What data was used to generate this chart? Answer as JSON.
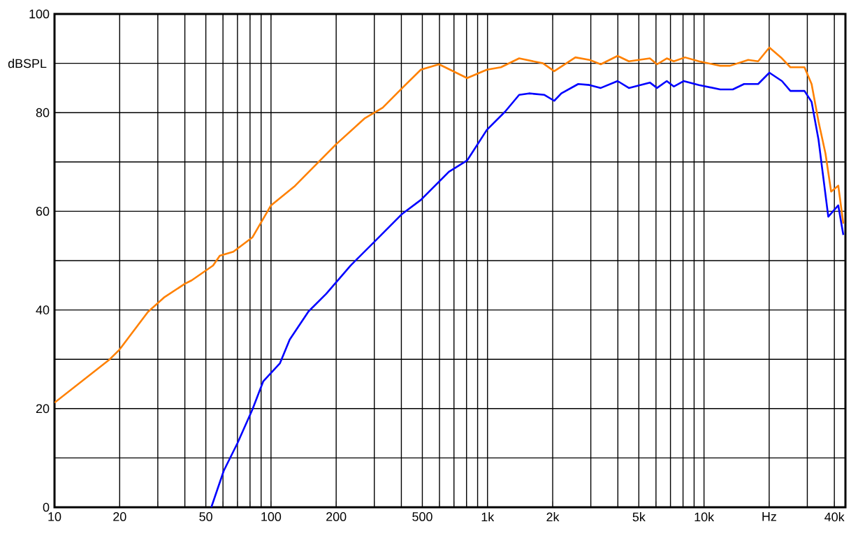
{
  "chart_data": {
    "type": "line",
    "ylabel": "dBSPL",
    "log": "x",
    "grid": true,
    "marker": "none",
    "line_style": "solid",
    "xlim": [
      10,
      45000
    ],
    "ylim": [
      0,
      100
    ],
    "xticks": [
      10,
      20,
      {
        "value": 30,
        "label": null
      },
      {
        "value": 40,
        "label": null
      },
      50,
      {
        "value": 60,
        "label": null
      },
      {
        "value": 70,
        "label": null
      },
      {
        "value": 80,
        "label": null
      },
      {
        "value": 90,
        "label": null
      },
      100,
      200,
      {
        "value": 300,
        "label": null
      },
      {
        "value": 400,
        "label": null
      },
      500,
      {
        "value": 600,
        "label": null
      },
      {
        "value": 700,
        "label": null
      },
      {
        "value": 800,
        "label": null
      },
      {
        "value": 900,
        "label": null
      },
      {
        "value": 1000,
        "label": "1k"
      },
      {
        "value": 2000,
        "label": "2k"
      },
      {
        "value": 3000,
        "label": null
      },
      {
        "value": 4000,
        "label": null
      },
      {
        "value": 5000,
        "label": "5k"
      },
      {
        "value": 6000,
        "label": null
      },
      {
        "value": 7000,
        "label": null
      },
      {
        "value": 8000,
        "label": null
      },
      {
        "value": 9000,
        "label": null
      },
      {
        "value": 10000,
        "label": "10k"
      },
      {
        "value": 20000,
        "label": "Hz"
      },
      {
        "value": 30000,
        "label": null
      },
      {
        "value": 40000,
        "label": "40k"
      }
    ],
    "yticks": [
      0,
      {
        "value": 10,
        "label": null
      },
      20,
      {
        "value": 30,
        "label": null
      },
      40,
      {
        "value": 50,
        "label": null
      },
      60,
      {
        "value": 70,
        "label": null
      },
      80,
      {
        "value": 90,
        "label": null
      },
      100
    ],
    "series": [
      {
        "color": "#ff8000",
        "x": [
          10,
          18,
          20,
          27,
          32,
          40,
          43,
          54,
          58,
          67,
          82,
          100,
          128,
          200,
          270,
          328,
          404,
          492,
          597,
          805,
          993,
          1153,
          1400,
          1805,
          2033,
          2546,
          2958,
          3334,
          3990,
          4497,
          5623,
          6067,
          6730,
          7250,
          8170,
          9480,
          11880,
          13180,
          16000,
          17780,
          20040,
          22910,
          25060,
          29100,
          31400,
          33800,
          36400,
          38650,
          41700,
          44000
        ],
        "values": [
          21.2,
          30,
          32,
          39.6,
          42.5,
          45.3,
          46,
          49,
          51,
          51.8,
          54.7,
          61.2,
          65,
          73.6,
          78.8,
          81,
          85,
          88.7,
          89.8,
          87,
          88.7,
          89.2,
          91,
          90,
          88.4,
          91.2,
          90.7,
          89.8,
          91.5,
          90.4,
          91,
          89.8,
          91,
          90.4,
          91.2,
          90.4,
          89.5,
          89.5,
          90.7,
          90.4,
          93.2,
          91,
          89.2,
          89.2,
          85.8,
          78.2,
          71.7,
          64,
          65.2,
          57.5
        ]
      },
      {
        "color": "#0000ff",
        "x": [
          53,
          60.5,
          70,
          82,
          92,
          110,
          122,
          149,
          180,
          210,
          233,
          300,
          404,
          492,
          663,
          805,
          993,
          1206,
          1400,
          1555,
          1832,
          2033,
          2193,
          2624,
          2958,
          3334,
          3990,
          4497,
          5623,
          6067,
          6730,
          7250,
          8050,
          9480,
          11880,
          13580,
          15310,
          17780,
          20040,
          22910,
          25060,
          29100,
          31400,
          33800,
          37500,
          41700,
          44000
        ],
        "values": [
          0,
          7.4,
          13,
          19.8,
          25.5,
          29.2,
          34,
          39.7,
          43.3,
          46.7,
          49,
          53.8,
          59.5,
          62.3,
          68,
          70.3,
          76.5,
          80.2,
          83.6,
          83.9,
          83.6,
          82.4,
          83.9,
          85.8,
          85.6,
          85,
          86.4,
          85,
          86.1,
          85,
          86.4,
          85.3,
          86.4,
          85.6,
          84.7,
          84.7,
          85.8,
          85.8,
          88.1,
          86.4,
          84.4,
          84.4,
          82.2,
          74.5,
          58.9,
          61.2,
          55.2
        ]
      }
    ]
  }
}
